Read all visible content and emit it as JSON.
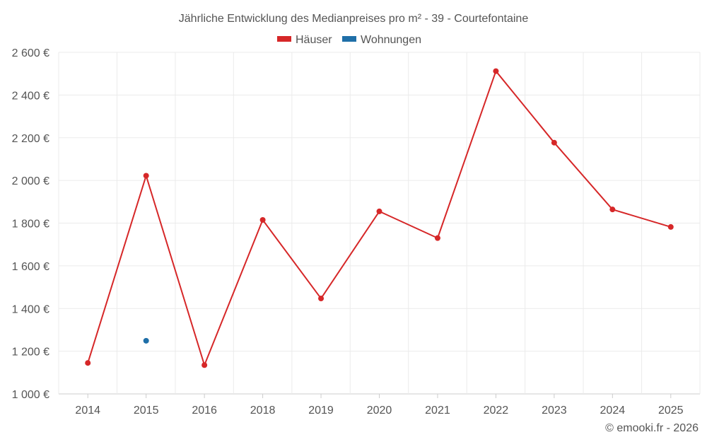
{
  "chart_data": {
    "type": "line",
    "title": "Jährliche Entwicklung des Medianpreises pro m² - 39 - Courtefontaine",
    "categories": [
      "2014",
      "2015",
      "2016",
      "2018",
      "2019",
      "2020",
      "2021",
      "2022",
      "2023",
      "2024",
      "2025"
    ],
    "series": [
      {
        "name": "Häuser",
        "color": "#d62728",
        "values": [
          1145,
          2022,
          1135,
          1815,
          1447,
          1855,
          1730,
          2512,
          2177,
          1864,
          1782
        ]
      },
      {
        "name": "Wohnungen",
        "color": "#1f6fa8",
        "values": [
          null,
          1249,
          null,
          null,
          null,
          null,
          null,
          null,
          null,
          null,
          null
        ]
      }
    ],
    "ylim": [
      1000,
      2600
    ],
    "yticks": [
      1000,
      1200,
      1400,
      1600,
      1800,
      2000,
      2200,
      2400,
      2600
    ],
    "ytick_labels": [
      "1 000 €",
      "1 200 €",
      "1 400 €",
      "1 600 €",
      "1 800 €",
      "2 000 €",
      "2 200 €",
      "2 400 €",
      "2 600 €"
    ],
    "xlabel": "",
    "ylabel": "",
    "grid": true,
    "legend_position": "top-center"
  },
  "credit": "© emooki.fr - 2026"
}
